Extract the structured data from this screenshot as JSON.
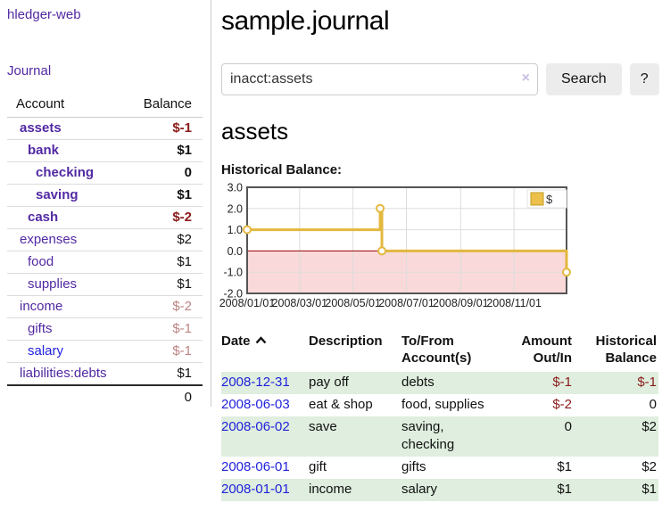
{
  "app": {
    "brand": "hledger-web"
  },
  "sidebar": {
    "nav": {
      "journal": "Journal"
    },
    "accounts": {
      "headers": {
        "account": "Account",
        "balance": "Balance"
      },
      "rows": [
        {
          "name": "assets",
          "balance": "$-1"
        },
        {
          "name": "bank",
          "balance": "$1"
        },
        {
          "name": "checking",
          "balance": "0"
        },
        {
          "name": "saving",
          "balance": "$1"
        },
        {
          "name": "cash",
          "balance": "$-2"
        },
        {
          "name": "expenses",
          "balance": "$2"
        },
        {
          "name": "food",
          "balance": "$1"
        },
        {
          "name": "supplies",
          "balance": "$1"
        },
        {
          "name": "income",
          "balance": "$-2"
        },
        {
          "name": "gifts",
          "balance": "$-1"
        },
        {
          "name": "salary",
          "balance": "$-1"
        },
        {
          "name": "liabilities:debts",
          "balance": "$1"
        }
      ],
      "total": "0"
    }
  },
  "main": {
    "title": "sample.journal",
    "search": {
      "value": "inacct:assets",
      "clear_icon": "×",
      "button_label": "Search",
      "help_label": "?"
    },
    "account_heading": "assets",
    "chart_section_label": "Historical Balance:"
  },
  "chart_data": {
    "type": "line",
    "step": true,
    "title": "Historical Balance",
    "series": [
      {
        "name": "$",
        "color": "#e3b83e",
        "points": [
          [
            "2008-01-01",
            1
          ],
          [
            "2008-06-01",
            2
          ],
          [
            "2008-06-03",
            0
          ],
          [
            "2008-12-31",
            -1
          ]
        ]
      }
    ],
    "x_ticks": [
      "2008/01/01",
      "2008/03/01",
      "2008/05/01",
      "2008/07/01",
      "2008/09/01",
      "2008/11/01"
    ],
    "y_ticks": [
      "3.0",
      "2.0",
      "1.0",
      "0.0",
      "-1.0",
      "-2.0"
    ],
    "xlim": [
      "2008-01-01",
      "2008-12-31"
    ],
    "ylim": [
      -2,
      3
    ],
    "grid": true,
    "negative_fill": "#f9d9d9",
    "zero_line_color": "#990000",
    "legend": {
      "label": "$",
      "position": "top-right",
      "swatch_fill": "#ecc04a",
      "swatch_stroke": "#c69b26"
    }
  },
  "register": {
    "headers": {
      "date": "Date",
      "description": "Description",
      "accounts": "To/From Account(s)",
      "amount": "Amount Out/In",
      "balance": "Historical Balance"
    },
    "rows": [
      {
        "date": "2008-12-31",
        "description": "pay off",
        "accounts": "debts",
        "amount": "$-1",
        "balance": "$-1"
      },
      {
        "date": "2008-06-03",
        "description": "eat & shop",
        "accounts": "food, supplies",
        "amount": "$-2",
        "balance": "0"
      },
      {
        "date": "2008-06-02",
        "description": "save",
        "accounts": "saving, checking",
        "amount": "0",
        "balance": "$2"
      },
      {
        "date": "2008-06-01",
        "description": "gift",
        "accounts": "gifts",
        "amount": "$1",
        "balance": "$2"
      },
      {
        "date": "2008-01-01",
        "description": "income",
        "accounts": "salary",
        "amount": "$1",
        "balance": "$1"
      }
    ]
  }
}
